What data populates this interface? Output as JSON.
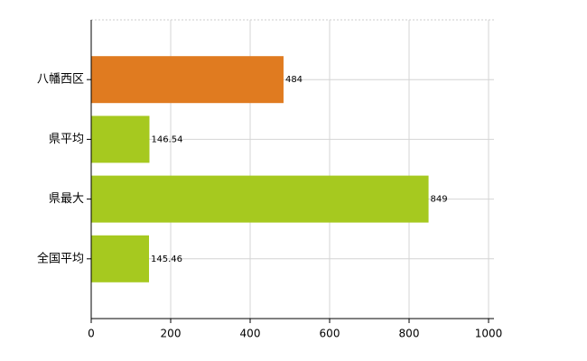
{
  "chart_data": {
    "type": "barh",
    "categories": [
      "八幡西区",
      "県平均",
      "県最大",
      "全国平均"
    ],
    "values": [
      484,
      146.54,
      849,
      145.46
    ],
    "colors": [
      "#e07b20",
      "#a6c91f",
      "#a6c91f",
      "#a6c91f"
    ],
    "xlim": [
      0,
      1000
    ],
    "xticks": [
      0,
      200,
      400,
      600,
      800,
      1000
    ],
    "grid": true
  }
}
